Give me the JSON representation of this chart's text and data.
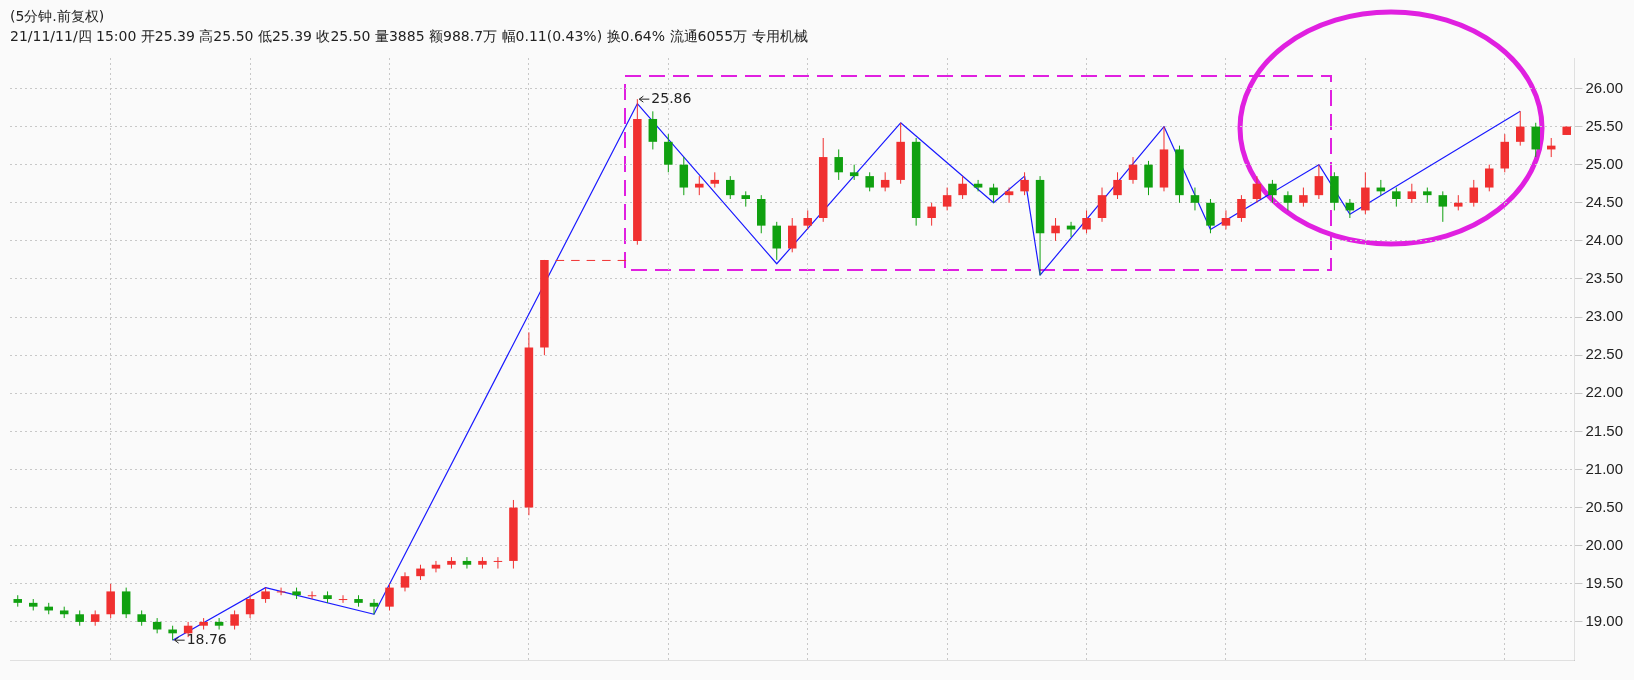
{
  "chart_data": {
    "type": "candlestick",
    "title": "(5分钟.前复权)",
    "subtitle": "21/11/11/四 15:00 开25.39 高25.50 低25.39 收25.50 量3885 额988.7万 幅0.11(0.43%) 换0.64% 流通6055万 专用机械",
    "categories": [
      null,
      null,
      null,
      null,
      null,
      null,
      null,
      null,
      null,
      null,
      null,
      null,
      null,
      null,
      null,
      null,
      null,
      null,
      null,
      null,
      null,
      null,
      null,
      null,
      null,
      null,
      null,
      null,
      null,
      null,
      null,
      null,
      null,
      null,
      null,
      null,
      null,
      null,
      null,
      null,
      null,
      null,
      null,
      null,
      null,
      null,
      null,
      null,
      null,
      null,
      null,
      null,
      null,
      null,
      null,
      null,
      null,
      null,
      null,
      null,
      null,
      null,
      null,
      null,
      null,
      null,
      null,
      null,
      null,
      null,
      null,
      null,
      null,
      null,
      null,
      null,
      null,
      null,
      null,
      null,
      null,
      null,
      null,
      null,
      null,
      null,
      null,
      null,
      null,
      null,
      null,
      null,
      null,
      null,
      null,
      null,
      null,
      null,
      null,
      null,
      null
    ],
    "ohlc": [
      [
        19.3,
        19.35,
        19.2,
        19.25
      ],
      [
        19.25,
        19.3,
        19.15,
        19.2
      ],
      [
        19.2,
        19.25,
        19.1,
        19.15
      ],
      [
        19.15,
        19.2,
        19.05,
        19.1
      ],
      [
        19.1,
        19.15,
        18.95,
        19.0
      ],
      [
        19.0,
        19.15,
        18.95,
        19.1
      ],
      [
        19.1,
        19.5,
        19.05,
        19.4
      ],
      [
        19.4,
        19.45,
        19.05,
        19.1
      ],
      [
        19.1,
        19.15,
        18.95,
        19.0
      ],
      [
        19.0,
        19.05,
        18.85,
        18.9
      ],
      [
        18.9,
        18.95,
        18.76,
        18.85
      ],
      [
        18.85,
        19.0,
        18.8,
        18.95
      ],
      [
        18.95,
        19.05,
        18.9,
        19.0
      ],
      [
        19.0,
        19.05,
        18.9,
        18.95
      ],
      [
        18.95,
        19.15,
        18.9,
        19.1
      ],
      [
        19.1,
        19.35,
        19.05,
        19.3
      ],
      [
        19.3,
        19.45,
        19.25,
        19.4
      ],
      [
        19.4,
        19.45,
        19.35,
        19.4
      ],
      [
        19.4,
        19.45,
        19.3,
        19.35
      ],
      [
        19.35,
        19.4,
        19.3,
        19.35
      ],
      [
        19.35,
        19.4,
        19.25,
        19.3
      ],
      [
        19.3,
        19.35,
        19.25,
        19.3
      ],
      [
        19.3,
        19.35,
        19.2,
        19.25
      ],
      [
        19.25,
        19.3,
        19.1,
        19.2
      ],
      [
        19.2,
        19.5,
        19.15,
        19.45
      ],
      [
        19.45,
        19.65,
        19.4,
        19.6
      ],
      [
        19.6,
        19.75,
        19.55,
        19.7
      ],
      [
        19.7,
        19.8,
        19.65,
        19.75
      ],
      [
        19.75,
        19.85,
        19.7,
        19.8
      ],
      [
        19.8,
        19.85,
        19.7,
        19.75
      ],
      [
        19.75,
        19.85,
        19.7,
        19.8
      ],
      [
        19.8,
        19.85,
        19.7,
        19.8
      ],
      [
        19.8,
        20.6,
        19.7,
        20.5
      ],
      [
        20.5,
        22.8,
        20.4,
        22.6
      ],
      [
        22.6,
        23.75,
        22.5,
        23.75
      ],
      [
        23.75,
        23.75,
        23.75,
        23.75
      ],
      [
        23.75,
        23.75,
        23.75,
        23.75
      ],
      [
        23.75,
        23.75,
        23.75,
        23.75
      ],
      [
        23.75,
        23.75,
        23.75,
        23.75
      ],
      [
        23.75,
        23.75,
        23.75,
        23.75
      ],
      [
        24.0,
        25.86,
        23.95,
        25.6
      ],
      [
        25.6,
        25.7,
        25.2,
        25.3
      ],
      [
        25.3,
        25.4,
        24.9,
        25.0
      ],
      [
        25.0,
        25.1,
        24.6,
        24.7
      ],
      [
        24.7,
        24.85,
        24.6,
        24.75
      ],
      [
        24.75,
        24.9,
        24.7,
        24.8
      ],
      [
        24.8,
        24.85,
        24.55,
        24.6
      ],
      [
        24.6,
        24.65,
        24.45,
        24.55
      ],
      [
        24.55,
        24.6,
        24.1,
        24.2
      ],
      [
        24.2,
        24.25,
        23.75,
        23.9
      ],
      [
        23.9,
        24.3,
        23.85,
        24.2
      ],
      [
        24.2,
        24.4,
        24.15,
        24.3
      ],
      [
        24.3,
        25.35,
        24.25,
        25.1
      ],
      [
        25.1,
        25.2,
        24.8,
        24.9
      ],
      [
        24.9,
        25.0,
        24.8,
        24.85
      ],
      [
        24.85,
        24.9,
        24.65,
        24.7
      ],
      [
        24.7,
        24.9,
        24.65,
        24.8
      ],
      [
        24.8,
        25.55,
        24.75,
        25.3
      ],
      [
        25.3,
        25.35,
        24.2,
        24.3
      ],
      [
        24.3,
        24.5,
        24.2,
        24.45
      ],
      [
        24.45,
        24.7,
        24.4,
        24.6
      ],
      [
        24.6,
        24.85,
        24.55,
        24.75
      ],
      [
        24.75,
        24.8,
        24.65,
        24.7
      ],
      [
        24.7,
        24.75,
        24.5,
        24.6
      ],
      [
        24.6,
        24.7,
        24.5,
        24.65
      ],
      [
        24.65,
        24.9,
        24.6,
        24.8
      ],
      [
        24.8,
        24.85,
        23.55,
        24.1
      ],
      [
        24.1,
        24.3,
        24.0,
        24.2
      ],
      [
        24.2,
        24.25,
        24.05,
        24.15
      ],
      [
        24.15,
        24.4,
        24.1,
        24.3
      ],
      [
        24.3,
        24.7,
        24.25,
        24.6
      ],
      [
        24.6,
        24.9,
        24.55,
        24.8
      ],
      [
        24.8,
        25.1,
        24.75,
        25.0
      ],
      [
        25.0,
        25.05,
        24.6,
        24.7
      ],
      [
        24.7,
        25.5,
        24.65,
        25.2
      ],
      [
        25.2,
        25.25,
        24.5,
        24.6
      ],
      [
        24.6,
        24.7,
        24.4,
        24.5
      ],
      [
        24.5,
        24.55,
        24.1,
        24.2
      ],
      [
        24.2,
        24.4,
        24.15,
        24.3
      ],
      [
        24.3,
        24.6,
        24.25,
        24.55
      ],
      [
        24.55,
        24.85,
        24.5,
        24.75
      ],
      [
        24.75,
        24.8,
        24.5,
        24.6
      ],
      [
        24.6,
        24.65,
        24.4,
        24.5
      ],
      [
        24.5,
        24.7,
        24.45,
        24.6
      ],
      [
        24.6,
        25.0,
        24.55,
        24.85
      ],
      [
        24.85,
        24.9,
        24.4,
        24.5
      ],
      [
        24.5,
        24.55,
        24.3,
        24.4
      ],
      [
        24.4,
        24.9,
        24.35,
        24.7
      ],
      [
        24.7,
        24.8,
        24.6,
        24.65
      ],
      [
        24.65,
        24.7,
        24.45,
        24.55
      ],
      [
        24.55,
        24.75,
        24.5,
        24.65
      ],
      [
        24.65,
        24.7,
        24.5,
        24.6
      ],
      [
        24.6,
        24.65,
        24.25,
        24.45
      ],
      [
        24.45,
        24.6,
        24.4,
        24.5
      ],
      [
        24.5,
        24.8,
        24.45,
        24.7
      ],
      [
        24.7,
        25.0,
        24.65,
        24.95
      ],
      [
        24.95,
        25.4,
        24.9,
        25.3
      ],
      [
        25.3,
        25.7,
        25.25,
        25.5
      ],
      [
        25.5,
        25.55,
        25.1,
        25.2
      ],
      [
        25.2,
        25.35,
        25.1,
        25.25
      ],
      [
        25.39,
        25.5,
        25.39,
        25.5
      ]
    ],
    "series": [
      {
        "type": "line",
        "color": "#1a1aff",
        "values": [
          null,
          null,
          null,
          null,
          null,
          null,
          null,
          null,
          null,
          null,
          18.76,
          null,
          null,
          null,
          null,
          null,
          19.45,
          null,
          null,
          null,
          null,
          null,
          null,
          19.1,
          null,
          null,
          null,
          null,
          null,
          null,
          null,
          null,
          null,
          null,
          null,
          null,
          null,
          null,
          null,
          null,
          25.8,
          null,
          null,
          null,
          null,
          null,
          null,
          null,
          null,
          23.7,
          null,
          null,
          null,
          null,
          null,
          null,
          null,
          25.55,
          null,
          null,
          null,
          null,
          null,
          24.5,
          null,
          24.85,
          23.55,
          null,
          null,
          null,
          null,
          null,
          null,
          null,
          25.5,
          null,
          null,
          24.15,
          null,
          null,
          null,
          null,
          null,
          null,
          25.0,
          null,
          24.35,
          null,
          null,
          null,
          null,
          null,
          null,
          null,
          null,
          null,
          null,
          25.7,
          null,
          null,
          null
        ]
      }
    ],
    "annotations": [
      "25.86",
      "18.76"
    ],
    "ylim": [
      18.5,
      26.4
    ],
    "yticks": [
      {
        "value": 19,
        "label": "19.00"
      },
      {
        "value": 19.5,
        "label": "19.50"
      },
      {
        "value": 20,
        "label": "20.00"
      },
      {
        "value": 20.5,
        "label": "20.50"
      },
      {
        "value": 21,
        "label": "21.00"
      },
      {
        "value": 21.5,
        "label": "21.50"
      },
      {
        "value": 22,
        "label": "22.00"
      },
      {
        "value": 22.5,
        "label": "22.50"
      },
      {
        "value": 23,
        "label": "23.00"
      },
      {
        "value": 23.5,
        "label": "23.50"
      },
      {
        "value": 24,
        "label": "24.00"
      },
      {
        "value": 24.5,
        "label": "24.50"
      },
      {
        "value": 25,
        "label": "25.00"
      },
      {
        "value": 25.5,
        "label": "25.50"
      },
      {
        "value": 26,
        "label": "26.00"
      }
    ],
    "tick_labels": "y",
    "grid": true,
    "legend": false
  }
}
